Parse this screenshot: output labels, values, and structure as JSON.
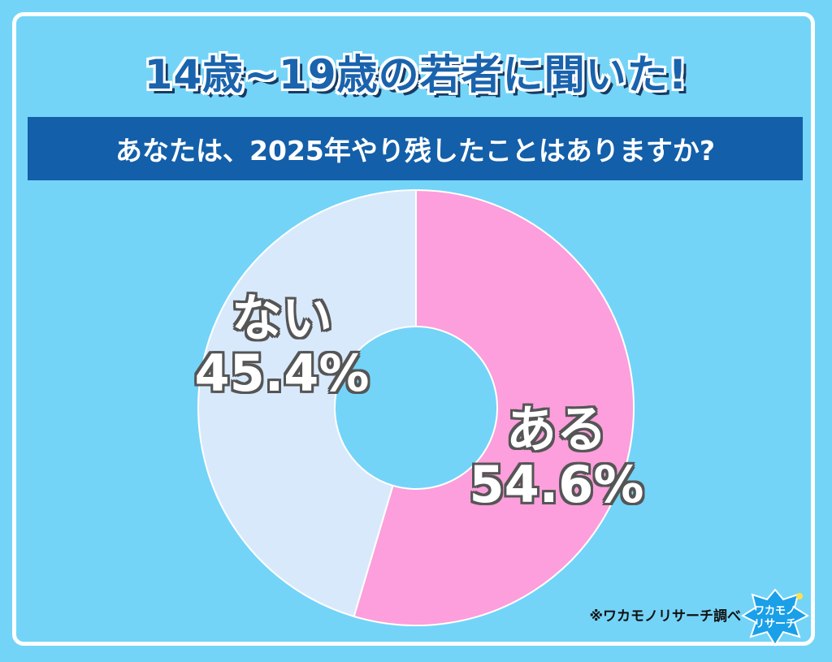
{
  "header": {
    "title": "14歳~19歳の若者に聞いた!",
    "question": "あなたは、2025年やり残したことはありますか?"
  },
  "chart_data": {
    "type": "pie",
    "donut": true,
    "slices": [
      {
        "label": "ある",
        "value": 54.6,
        "value_text": "54.6%",
        "color": "#fc9fdc"
      },
      {
        "label": "ない",
        "value": 45.4,
        "value_text": "45.4%",
        "color": "#d8e9fb"
      }
    ],
    "start": "top",
    "direction": "clockwise"
  },
  "footer": {
    "source": "※ワカモノリサーチ調べ",
    "logo_text": "ワカモノ リサーチ"
  },
  "colors": {
    "background": "#73d4f8",
    "frame": "#ffffff",
    "title": "#1a63ad",
    "question_bar": "#135fa9"
  }
}
